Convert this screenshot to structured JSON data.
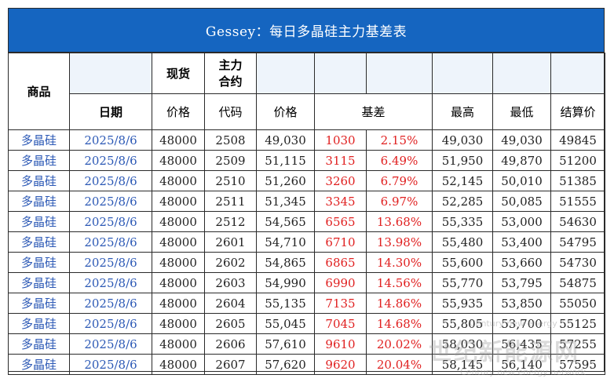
{
  "title": "Gessey：每日多晶硅主力基差表",
  "header": {
    "product": "商品",
    "spot_group": "现货",
    "main_contract": "主力\n合约",
    "date": "日期",
    "spot_price": "价格",
    "code": "代码",
    "price": "价格",
    "basis": "基差",
    "high": "最高",
    "low": "最低",
    "settle": "结算价"
  },
  "rows": [
    {
      "product": "多晶硅",
      "date": "2025/8/6",
      "spot": "48000",
      "code": "2508",
      "price": "49,030",
      "basis": "1030",
      "basis_pct": "2.15%",
      "high": "49,030",
      "low": "49,030",
      "settle": "49845"
    },
    {
      "product": "多晶硅",
      "date": "2025/8/6",
      "spot": "48000",
      "code": "2509",
      "price": "51,115",
      "basis": "3115",
      "basis_pct": "6.49%",
      "high": "51,950",
      "low": "49,870",
      "settle": "51200"
    },
    {
      "product": "多晶硅",
      "date": "2025/8/6",
      "spot": "48000",
      "code": "2510",
      "price": "51,260",
      "basis": "3260",
      "basis_pct": "6.79%",
      "high": "52,145",
      "low": "50,010",
      "settle": "51385"
    },
    {
      "product": "多晶硅",
      "date": "2025/8/6",
      "spot": "48000",
      "code": "2511",
      "price": "51,345",
      "basis": "3345",
      "basis_pct": "6.97%",
      "high": "52,285",
      "low": "50,085",
      "settle": "51555"
    },
    {
      "product": "多晶硅",
      "date": "2025/8/6",
      "spot": "48000",
      "code": "2512",
      "price": "54,565",
      "basis": "6565",
      "basis_pct": "13.68%",
      "high": "55,335",
      "low": "53,000",
      "settle": "54630"
    },
    {
      "product": "多晶硅",
      "date": "2025/8/6",
      "spot": "48000",
      "code": "2601",
      "price": "54,710",
      "basis": "6710",
      "basis_pct": "13.98%",
      "high": "55,480",
      "low": "53,400",
      "settle": "54795"
    },
    {
      "product": "多晶硅",
      "date": "2025/8/6",
      "spot": "48000",
      "code": "2602",
      "price": "54,865",
      "basis": "6865",
      "basis_pct": "14.30%",
      "high": "55,600",
      "low": "53,660",
      "settle": "54730"
    },
    {
      "product": "多晶硅",
      "date": "2025/8/6",
      "spot": "48000",
      "code": "2603",
      "price": "54,990",
      "basis": "6990",
      "basis_pct": "14.56%",
      "high": "55,770",
      "low": "53,795",
      "settle": "54875"
    },
    {
      "product": "多晶硅",
      "date": "2025/8/6",
      "spot": "48000",
      "code": "2604",
      "price": "55,135",
      "basis": "7135",
      "basis_pct": "14.86%",
      "high": "55,935",
      "low": "53,850",
      "settle": "55050"
    },
    {
      "product": "多晶硅",
      "date": "2025/8/6",
      "spot": "48000",
      "code": "2605",
      "price": "55,045",
      "basis": "7045",
      "basis_pct": "14.68%",
      "high": "55,805",
      "low": "53,700",
      "settle": "55125"
    },
    {
      "product": "多晶硅",
      "date": "2025/8/6",
      "spot": "48000",
      "code": "2606",
      "price": "57,610",
      "basis": "9610",
      "basis_pct": "20.02%",
      "high": "58,030",
      "low": "56,435",
      "settle": "57255"
    },
    {
      "product": "多晶硅",
      "date": "2025/8/6",
      "spot": "48000",
      "code": "2607",
      "price": "57,620",
      "basis": "9620",
      "basis_pct": "20.04%",
      "high": "58,145",
      "low": "56,140",
      "settle": "57595"
    }
  ],
  "watermark": {
    "top": "Century new energy",
    "big": "世纪新能源网",
    "small": "Century new energy network"
  }
}
